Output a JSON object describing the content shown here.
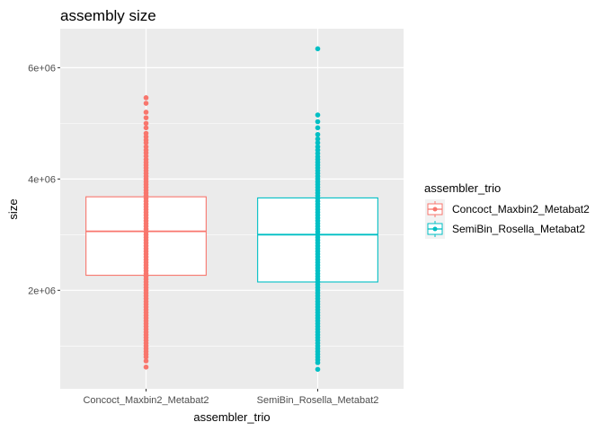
{
  "chart_data": {
    "type": "boxplot",
    "title": "assembly size",
    "xlabel": "assembler_trio",
    "ylabel": "size",
    "ylim": [
      230000,
      6700000
    ],
    "yticks": [
      2000000,
      4000000,
      6000000
    ],
    "ytick_labels": [
      "2e+06",
      "4e+06",
      "6e+06"
    ],
    "grid": true,
    "legend": {
      "title": "assembler_trio",
      "placement": "right",
      "entries": [
        "Concoct_Maxbin2_Metabat2",
        "SemiBin_Rosella_Metabat2"
      ]
    },
    "categories": [
      "Concoct_Maxbin2_Metabat2",
      "SemiBin_Rosella_Metabat2"
    ],
    "series": [
      {
        "name": "Concoct_Maxbin2_Metabat2",
        "color": "#F8766D",
        "q1": 2270000,
        "median": 3060000,
        "q3": 3680000,
        "points": [
          5460000,
          5360000,
          5200000,
          5100000,
          5000000,
          4920000,
          4820000,
          4760000,
          4700000,
          4650000,
          4580000,
          4520000,
          4470000,
          4410000,
          4350000,
          4300000,
          4250000,
          4200000,
          4150000,
          4100000,
          4050000,
          4000000,
          3950000,
          3900000,
          3850000,
          3800000,
          3750000,
          3700000,
          3650000,
          3600000,
          3550000,
          3500000,
          3450000,
          3400000,
          3350000,
          3300000,
          3250000,
          3200000,
          3150000,
          3100000,
          3050000,
          3000000,
          2950000,
          2900000,
          2850000,
          2800000,
          2750000,
          2700000,
          2650000,
          2600000,
          2550000,
          2500000,
          2450000,
          2400000,
          2350000,
          2300000,
          2250000,
          2200000,
          2150000,
          2100000,
          2050000,
          2000000,
          1950000,
          1900000,
          1850000,
          1800000,
          1750000,
          1700000,
          1650000,
          1600000,
          1550000,
          1500000,
          1450000,
          1400000,
          1350000,
          1300000,
          1250000,
          1200000,
          1150000,
          1100000,
          1050000,
          1000000,
          950000,
          900000,
          850000,
          800000,
          730000,
          620000
        ]
      },
      {
        "name": "SemiBin_Rosella_Metabat2",
        "color": "#00BFC4",
        "q1": 2150000,
        "median": 3000000,
        "q3": 3660000,
        "points": [
          6340000,
          5150000,
          5030000,
          4920000,
          4800000,
          4720000,
          4650000,
          4580000,
          4520000,
          4460000,
          4400000,
          4350000,
          4300000,
          4250000,
          4200000,
          4150000,
          4100000,
          4050000,
          4000000,
          3950000,
          3900000,
          3850000,
          3800000,
          3750000,
          3700000,
          3650000,
          3600000,
          3550000,
          3500000,
          3450000,
          3400000,
          3350000,
          3300000,
          3250000,
          3200000,
          3150000,
          3100000,
          3050000,
          3000000,
          2950000,
          2900000,
          2850000,
          2800000,
          2750000,
          2700000,
          2650000,
          2600000,
          2550000,
          2500000,
          2450000,
          2400000,
          2350000,
          2300000,
          2250000,
          2200000,
          2150000,
          2100000,
          2050000,
          2000000,
          1950000,
          1900000,
          1850000,
          1800000,
          1750000,
          1700000,
          1650000,
          1600000,
          1550000,
          1500000,
          1450000,
          1400000,
          1350000,
          1300000,
          1250000,
          1200000,
          1150000,
          1100000,
          1050000,
          1000000,
          950000,
          900000,
          850000,
          800000,
          750000,
          700000,
          580000
        ]
      }
    ]
  }
}
